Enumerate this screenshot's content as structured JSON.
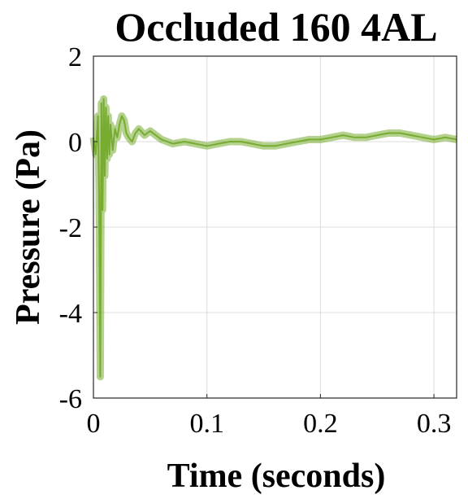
{
  "chart_data": {
    "type": "line",
    "title": "Occluded 160 4AL",
    "xlabel": "Time (seconds)",
    "ylabel": "Pressure (Pa)",
    "xlim": [
      0,
      0.32
    ],
    "ylim": [
      -6,
      2
    ],
    "xticks": [
      0,
      0.1,
      0.2,
      0.3
    ],
    "xtick_labels": [
      "0",
      "0.1",
      "0.2",
      "0.3"
    ],
    "yticks": [
      -6,
      -4,
      -2,
      0,
      2
    ],
    "ytick_labels": [
      "-6",
      "-4",
      "-2",
      "0",
      "2"
    ],
    "grid": true,
    "legend": "none",
    "series": [
      {
        "color": "#77ac30",
        "x": [
          0,
          0.002,
          0.004,
          0.005,
          0.006,
          0.007,
          0.008,
          0.009,
          0.01,
          0.011,
          0.012,
          0.013,
          0.014,
          0.015,
          0.017,
          0.019,
          0.021,
          0.023,
          0.025,
          0.027,
          0.029,
          0.031,
          0.034,
          0.037,
          0.04,
          0.045,
          0.05,
          0.06,
          0.07,
          0.08,
          0.09,
          0.1,
          0.11,
          0.12,
          0.13,
          0.14,
          0.15,
          0.16,
          0.17,
          0.18,
          0.19,
          0.2,
          0.21,
          0.22,
          0.23,
          0.24,
          0.25,
          0.26,
          0.27,
          0.28,
          0.29,
          0.3,
          0.31,
          0.32
        ],
        "y": [
          0.1,
          -0.3,
          0.6,
          -1.2,
          -5.5,
          0.9,
          -1.6,
          1.0,
          -0.8,
          0.8,
          -0.4,
          0.6,
          -0.3,
          0.4,
          -0.2,
          0.3,
          0.1,
          0.4,
          0.6,
          0.5,
          0.2,
          0.1,
          0.0,
          0.2,
          0.3,
          0.15,
          0.25,
          0.05,
          -0.05,
          0.0,
          -0.05,
          -0.1,
          -0.05,
          0.0,
          0.0,
          -0.05,
          -0.1,
          -0.1,
          -0.05,
          0.0,
          0.05,
          0.05,
          0.1,
          0.15,
          0.1,
          0.1,
          0.15,
          0.2,
          0.2,
          0.15,
          0.1,
          0.05,
          0.1,
          0.05
        ]
      }
    ]
  }
}
